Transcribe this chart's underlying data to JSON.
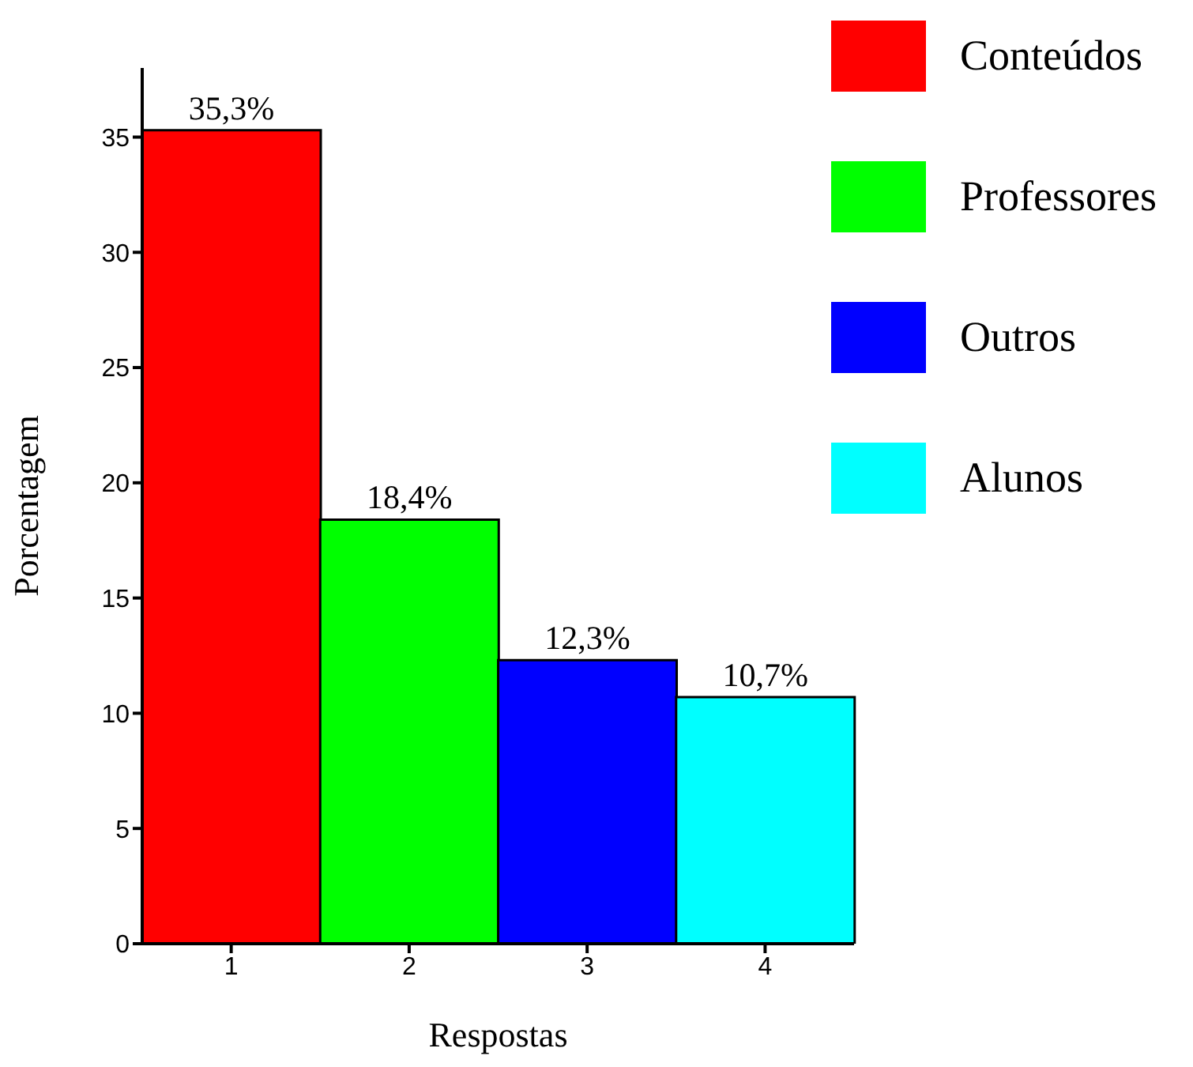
{
  "chart_data": {
    "type": "bar",
    "xlabel": "Respostas",
    "ylabel": "Porcentagem",
    "categories": [
      "1",
      "2",
      "3",
      "4"
    ],
    "stacked": true,
    "series": [
      {
        "name": "Conteúdos",
        "color": "#ff0000",
        "values": [
          35.3,
          null,
          null,
          null
        ],
        "value_labels": [
          "35,3%",
          null,
          null,
          null
        ]
      },
      {
        "name": "Professores",
        "color": "#00ff00",
        "values": [
          null,
          18.4,
          null,
          null
        ],
        "value_labels": [
          null,
          "18,4%",
          null,
          null
        ]
      },
      {
        "name": "Outros",
        "color": "#0000ff",
        "values": [
          null,
          null,
          12.3,
          null
        ],
        "value_labels": [
          null,
          null,
          "12,3%",
          null
        ]
      },
      {
        "name": "Alunos",
        "color": "#00ffff",
        "values": [
          null,
          null,
          null,
          10.7
        ],
        "value_labels": [
          null,
          null,
          null,
          "10,7%"
        ]
      }
    ],
    "ylim": [
      0,
      38
    ],
    "yticks": [
      0,
      5,
      10,
      15,
      20,
      25,
      30,
      35
    ],
    "grid": false,
    "legend": "top right"
  }
}
